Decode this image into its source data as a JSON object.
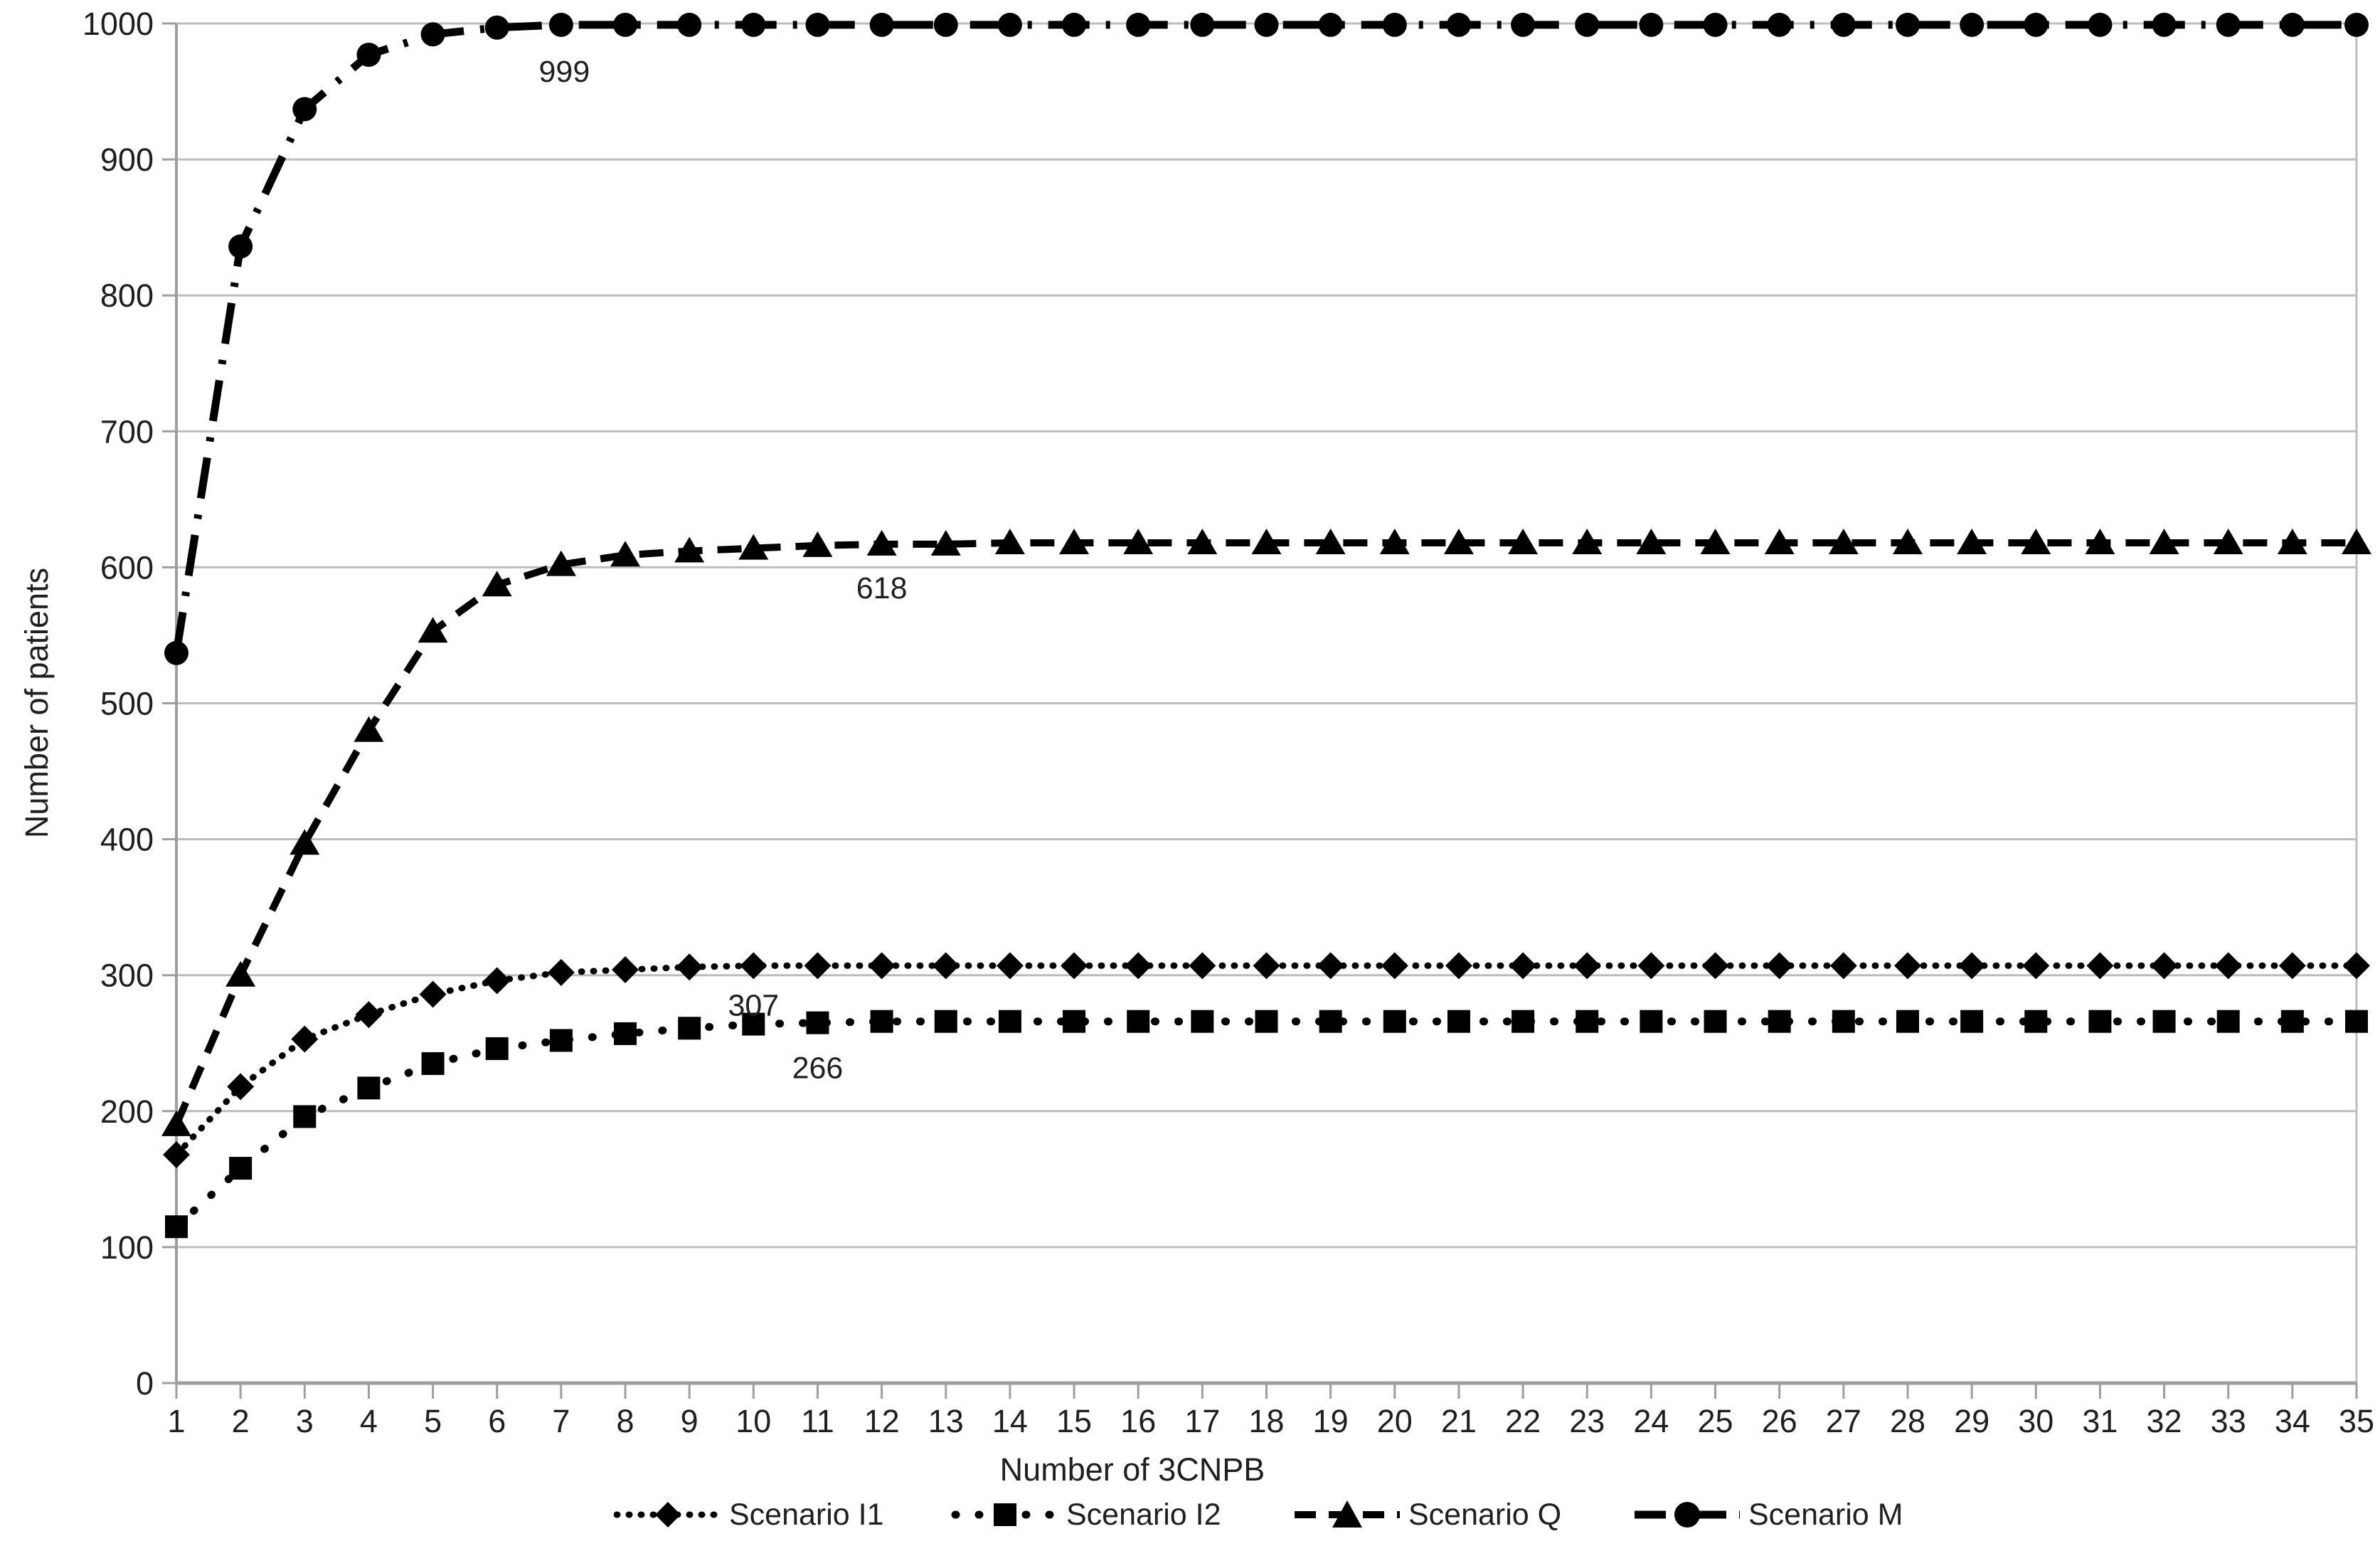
{
  "figure": {
    "background": "#ffffff",
    "text_color": "#1f1f1f",
    "grid_color": "#bdbdbd",
    "axis_color": "#9e9e9e",
    "series_color": "#000000"
  },
  "chart_data": {
    "type": "line",
    "title": "",
    "xlabel": "Number of 3CNPB",
    "ylabel": "Number of patients",
    "ylim": [
      0,
      1000
    ],
    "ytick_step": 100,
    "yticks": [
      0,
      100,
      200,
      300,
      400,
      500,
      600,
      700,
      800,
      900,
      1000
    ],
    "x": [
      1,
      2,
      3,
      4,
      5,
      6,
      7,
      8,
      9,
      10,
      11,
      12,
      13,
      14,
      15,
      16,
      17,
      18,
      19,
      20,
      21,
      22,
      23,
      24,
      25,
      26,
      27,
      28,
      29,
      30,
      31,
      32,
      33,
      34,
      35
    ],
    "grid": "horizontal",
    "legend_position": "bottom",
    "series": [
      {
        "name": "Scenario I1",
        "marker": "diamond",
        "line_style": "dotted-dense",
        "values": [
          168,
          218,
          253,
          271,
          286,
          296,
          302,
          304,
          306,
          307,
          307,
          307,
          307,
          307,
          307,
          307,
          307,
          307,
          307,
          307,
          307,
          307,
          307,
          307,
          307,
          307,
          307,
          307,
          307,
          307,
          307,
          307,
          307,
          307,
          307
        ]
      },
      {
        "name": "Scenario I2",
        "marker": "square",
        "line_style": "dotted-sparse",
        "values": [
          115,
          158,
          196,
          217,
          235,
          246,
          252,
          257,
          261,
          264,
          265,
          266,
          266,
          266,
          266,
          266,
          266,
          266,
          266,
          266,
          266,
          266,
          266,
          266,
          266,
          266,
          266,
          266,
          266,
          266,
          266,
          266,
          266,
          266,
          266
        ]
      },
      {
        "name": "Scenario Q",
        "marker": "triangle",
        "line_style": "dashed",
        "values": [
          190,
          300,
          397,
          480,
          553,
          587,
          602,
          609,
          612,
          614,
          616,
          617,
          617,
          618,
          618,
          618,
          618,
          618,
          618,
          618,
          618,
          618,
          618,
          618,
          618,
          618,
          618,
          618,
          618,
          618,
          618,
          618,
          618,
          618,
          618
        ]
      },
      {
        "name": "Scenario M",
        "marker": "circle",
        "line_style": "dash-dot",
        "values": [
          537,
          836,
          937,
          977,
          992,
          997,
          999,
          999,
          999,
          999,
          999,
          999,
          999,
          999,
          999,
          999,
          999,
          999,
          999,
          999,
          999,
          999,
          999,
          999,
          999,
          999,
          999,
          999,
          999,
          999,
          999,
          999,
          999,
          999,
          999
        ]
      }
    ],
    "annotations": [
      {
        "text": "999",
        "x": 7.05,
        "y": 965
      },
      {
        "text": "618",
        "x": 12.0,
        "y": 585
      },
      {
        "text": "307",
        "x": 10.0,
        "y": 278
      },
      {
        "text": "266",
        "x": 11.0,
        "y": 232
      }
    ]
  }
}
